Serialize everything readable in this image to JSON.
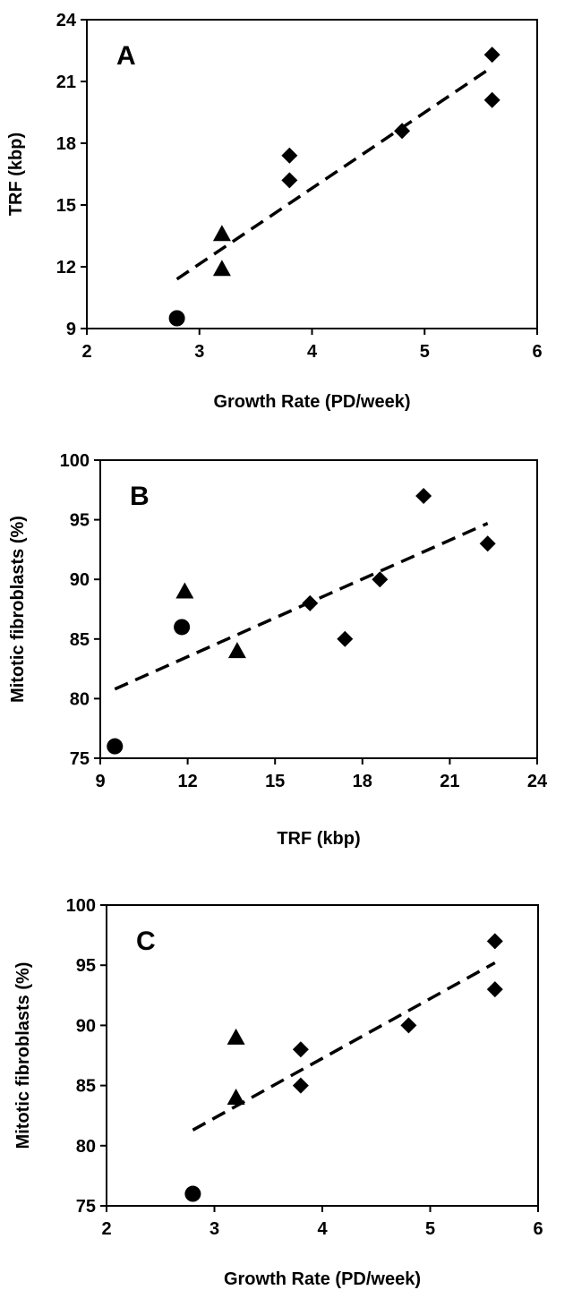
{
  "chart_data": [
    {
      "type": "scatter",
      "panel_label": "A",
      "xlabel": "Growth Rate (PD/week)",
      "ylabel": "TRF (kbp)",
      "xlim": [
        2,
        6
      ],
      "ylim": [
        9,
        24
      ],
      "xticks": [
        2,
        3,
        4,
        5,
        6
      ],
      "yticks": [
        9,
        12,
        15,
        18,
        21,
        24
      ],
      "grid": false,
      "series": [
        {
          "marker": "circle",
          "points": [
            [
              2.8,
              9.5
            ]
          ]
        },
        {
          "marker": "triangle",
          "points": [
            [
              3.2,
              13.6
            ],
            [
              3.2,
              11.9
            ]
          ]
        },
        {
          "marker": "diamond",
          "points": [
            [
              3.8,
              17.4
            ],
            [
              3.8,
              16.2
            ],
            [
              4.8,
              18.6
            ],
            [
              5.6,
              22.3
            ],
            [
              5.6,
              20.1
            ]
          ]
        }
      ],
      "trendline": {
        "style": "dashed",
        "from": [
          2.8,
          11.4
        ],
        "to": [
          5.6,
          21.7
        ]
      }
    },
    {
      "type": "scatter",
      "panel_label": "B",
      "xlabel": "TRF (kbp)",
      "ylabel": "Mitotic fibroblasts (%)",
      "xlim": [
        9,
        24
      ],
      "ylim": [
        75,
        100
      ],
      "xticks": [
        9,
        12,
        15,
        18,
        21,
        24
      ],
      "yticks": [
        75,
        80,
        85,
        90,
        95,
        100
      ],
      "grid": false,
      "series": [
        {
          "marker": "circle",
          "points": [
            [
              9.5,
              76
            ],
            [
              11.8,
              86
            ]
          ]
        },
        {
          "marker": "triangle",
          "points": [
            [
              11.9,
              89
            ],
            [
              13.7,
              84
            ]
          ]
        },
        {
          "marker": "diamond",
          "points": [
            [
              16.2,
              88
            ],
            [
              17.4,
              85
            ],
            [
              18.6,
              90
            ],
            [
              20.1,
              97
            ],
            [
              22.3,
              93
            ]
          ]
        }
      ],
      "trendline": {
        "style": "dashed",
        "from": [
          9.5,
          80.8
        ],
        "to": [
          22.3,
          94.7
        ]
      }
    },
    {
      "type": "scatter",
      "panel_label": "C",
      "xlabel": "Growth Rate (PD/week)",
      "ylabel": "Mitotic fibroblasts (%)",
      "xlim": [
        2,
        6
      ],
      "ylim": [
        75,
        100
      ],
      "xticks": [
        2,
        3,
        4,
        5,
        6
      ],
      "yticks": [
        75,
        80,
        85,
        90,
        95,
        100
      ],
      "grid": false,
      "series": [
        {
          "marker": "circle",
          "points": [
            [
              2.8,
              76
            ]
          ]
        },
        {
          "marker": "triangle",
          "points": [
            [
              3.2,
              89
            ],
            [
              3.2,
              84
            ]
          ]
        },
        {
          "marker": "diamond",
          "points": [
            [
              3.8,
              88
            ],
            [
              3.8,
              85
            ],
            [
              4.8,
              90
            ],
            [
              5.6,
              97
            ],
            [
              5.6,
              93
            ]
          ]
        }
      ],
      "trendline": {
        "style": "dashed",
        "from": [
          2.8,
          81.3
        ],
        "to": [
          5.6,
          95.2
        ]
      }
    }
  ]
}
